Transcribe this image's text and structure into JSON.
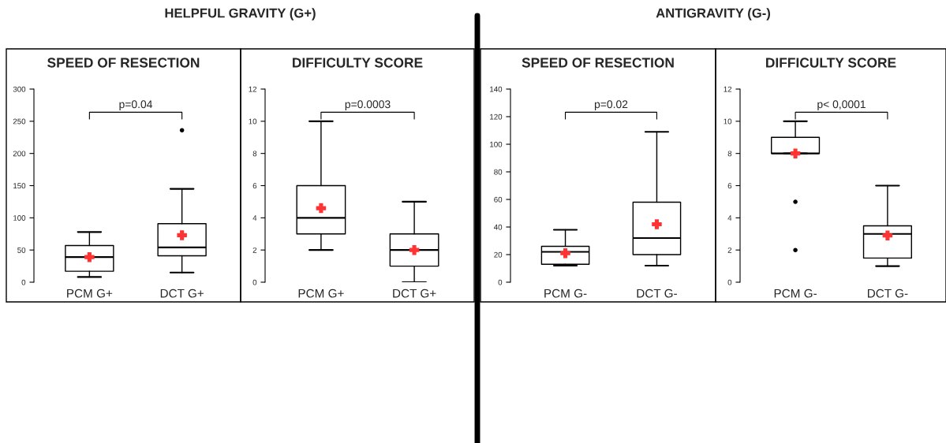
{
  "chart_data": [
    {
      "type": "box",
      "title": "SPEED OF RESECTION",
      "categories": [
        "PCM G+",
        "DCT G+"
      ],
      "ylim": [
        0,
        300
      ],
      "yticks": [
        0,
        50,
        100,
        150,
        200,
        250,
        300
      ],
      "boxes": [
        {
          "low": 8,
          "q1": 17,
          "median": 39,
          "q3": 57,
          "high": 78,
          "mean": 39
        },
        {
          "low": 15,
          "q1": 41,
          "median": 54,
          "q3": 91,
          "high": 145,
          "mean": 73,
          "outliers": [
            236
          ]
        }
      ],
      "annotations": [
        "p=0.04",
        "HELPFUL GRAVITY (G+)"
      ],
      "grid": false,
      "legend": false
    },
    {
      "type": "box",
      "title": "DIFFICULTY SCORE",
      "categories": [
        "PCM G+",
        "DCT G+"
      ],
      "ylim": [
        0,
        12
      ],
      "yticks": [
        0,
        2,
        4,
        6,
        8,
        10,
        12
      ],
      "boxes": [
        {
          "low": 2,
          "q1": 3,
          "median": 4,
          "q3": 6,
          "high": 10,
          "mean": 4.6
        },
        {
          "low": 0,
          "q1": 1,
          "median": 2,
          "q3": 3,
          "high": 5,
          "mean": 2
        }
      ],
      "annotations": [
        "p=0.0003"
      ],
      "grid": false,
      "legend": false
    },
    {
      "type": "box",
      "title": "SPEED OF RESECTION",
      "categories": [
        "PCM G-",
        "DCT G-"
      ],
      "ylim": [
        0,
        140
      ],
      "yticks": [
        0,
        20,
        40,
        60,
        80,
        100,
        120,
        140
      ],
      "boxes": [
        {
          "low": 12,
          "q1": 13,
          "median": 22,
          "q3": 26,
          "high": 38,
          "mean": 21
        },
        {
          "low": 12,
          "q1": 20,
          "median": 32,
          "q3": 58,
          "high": 109,
          "mean": 42
        }
      ],
      "annotations": [
        "p=0.02",
        "ANTIGRAVITY (G-)"
      ],
      "grid": false,
      "legend": false
    },
    {
      "type": "box",
      "title": "DIFFICULTY SCORE",
      "categories": [
        "PCM G-",
        "DCT G-"
      ],
      "ylim": [
        0,
        12
      ],
      "yticks": [
        0,
        2,
        4,
        6,
        8,
        10,
        12
      ],
      "boxes": [
        {
          "low": 8,
          "q1": 8,
          "median": 8,
          "q3": 9,
          "high": 10,
          "mean": 8,
          "outliers": [
            5,
            2
          ]
        },
        {
          "low": 1,
          "q1": 1.5,
          "median": 3,
          "q3": 3.5,
          "high": 6,
          "mean": 2.9
        }
      ],
      "annotations": [
        "p< 0,0001"
      ],
      "grid": false,
      "legend": false
    }
  ]
}
